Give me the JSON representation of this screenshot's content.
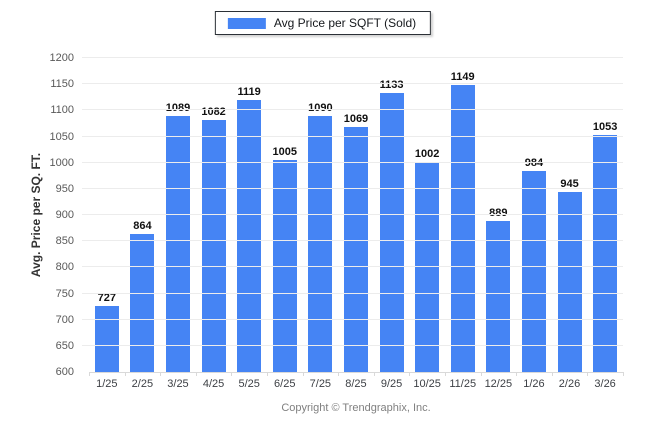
{
  "legend": {
    "label": "Avg Price per SQFT (Sold)",
    "swatch_color": "#4584f4"
  },
  "y_axis": {
    "title": "Avg. Price per SQ. FT."
  },
  "footer": {
    "text": "Copyright © Trendgraphix, Inc."
  },
  "chart_data": {
    "type": "bar",
    "title": "",
    "series_name": "Avg Price per SQFT (Sold)",
    "categories": [
      "1/25",
      "2/25",
      "3/25",
      "4/25",
      "5/25",
      "6/25",
      "7/25",
      "8/25",
      "9/25",
      "10/25",
      "11/25",
      "12/25",
      "1/26",
      "2/26",
      "3/26"
    ],
    "values": [
      727,
      864,
      1089,
      1082,
      1119,
      1005,
      1090,
      1069,
      1133,
      1002,
      1149,
      889,
      984,
      945,
      1053
    ],
    "value_labels": true,
    "xlabel": "",
    "ylabel": "Avg. Price per SQ. FT.",
    "ylim": [
      600,
      1200
    ],
    "yticks": [
      600,
      650,
      700,
      750,
      800,
      850,
      900,
      950,
      1000,
      1050,
      1100,
      1150,
      1200
    ],
    "grid": true,
    "legend_position": "top",
    "bar_color": "#4584f4",
    "gridline_color": "#ececec"
  }
}
